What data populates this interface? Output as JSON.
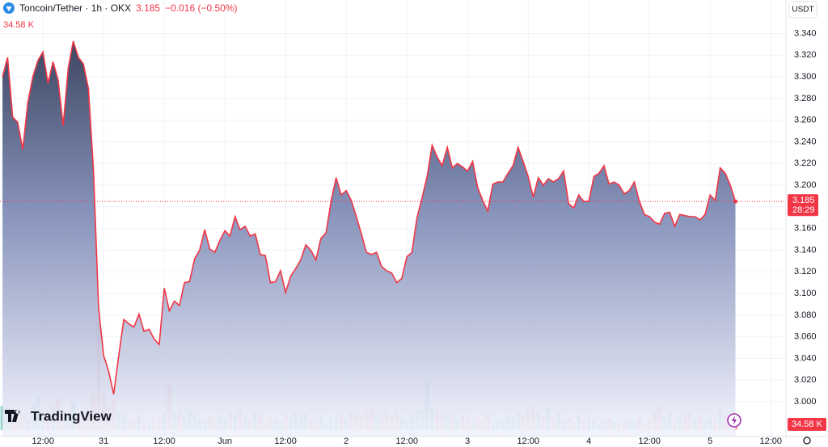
{
  "chart_data": {
    "type": "area",
    "title": "Toncoin/Tether · 1h · OKX",
    "last_price": 3.185,
    "change_label": "−0.016 (−0.50%)",
    "currency": "USDT",
    "countdown": "28:29",
    "watermark": "TradingView",
    "color": "#f23645",
    "grid": true,
    "x": [
      0,
      1,
      2,
      3,
      4,
      5,
      6,
      7,
      8,
      9,
      10,
      11,
      12,
      13,
      14,
      15,
      16,
      17,
      18,
      19,
      20,
      21,
      22,
      23,
      24,
      25,
      26,
      27,
      28,
      29,
      30,
      31,
      32,
      33,
      34,
      35,
      36,
      37,
      38,
      39,
      40,
      41,
      42,
      43,
      44,
      45,
      46,
      47,
      48,
      49,
      50,
      51,
      52,
      53,
      54,
      55,
      56,
      57,
      58,
      59,
      60,
      61,
      62,
      63,
      64,
      65,
      66,
      67,
      68,
      69,
      70,
      71,
      72,
      73,
      74,
      75,
      76,
      77,
      78,
      79,
      80,
      81,
      82,
      83,
      84,
      85,
      86,
      87,
      88,
      89,
      90,
      91,
      92,
      93,
      94,
      95,
      96,
      97,
      98,
      99,
      100,
      101,
      102,
      103,
      104,
      105,
      106,
      107,
      108,
      109,
      110,
      111,
      112,
      113,
      114,
      115,
      116,
      117,
      118,
      119,
      120,
      121,
      122,
      123,
      124,
      125,
      126,
      127,
      128,
      129,
      130,
      131,
      132,
      133,
      134,
      135,
      136,
      137,
      138,
      139,
      140,
      141,
      142,
      143,
      144,
      145
    ],
    "values": [
      3.3,
      3.318,
      3.263,
      3.258,
      3.233,
      3.276,
      3.3,
      3.315,
      3.323,
      3.294,
      3.314,
      3.297,
      3.255,
      3.308,
      3.333,
      3.318,
      3.312,
      3.289,
      3.214,
      3.087,
      3.043,
      3.028,
      3.007,
      3.043,
      3.076,
      3.072,
      3.069,
      3.081,
      3.065,
      3.067,
      3.058,
      3.053,
      3.105,
      3.084,
      3.093,
      3.089,
      3.11,
      3.111,
      3.132,
      3.14,
      3.159,
      3.141,
      3.138,
      3.149,
      3.158,
      3.153,
      3.171,
      3.159,
      3.162,
      3.153,
      3.155,
      3.136,
      3.135,
      3.11,
      3.111,
      3.121,
      3.101,
      3.116,
      3.123,
      3.131,
      3.145,
      3.14,
      3.131,
      3.151,
      3.156,
      3.185,
      3.207,
      3.191,
      3.195,
      3.186,
      3.171,
      3.155,
      3.138,
      3.136,
      3.138,
      3.125,
      3.121,
      3.119,
      3.11,
      3.114,
      3.134,
      3.138,
      3.17,
      3.188,
      3.208,
      3.237,
      3.226,
      3.218,
      3.235,
      3.216,
      3.22,
      3.217,
      3.213,
      3.222,
      3.198,
      3.186,
      3.176,
      3.201,
      3.203,
      3.203,
      3.211,
      3.218,
      3.235,
      3.222,
      3.208,
      3.189,
      3.207,
      3.2,
      3.206,
      3.203,
      3.206,
      3.213,
      3.183,
      3.179,
      3.191,
      3.185,
      3.185,
      3.208,
      3.211,
      3.218,
      3.201,
      3.203,
      3.2,
      3.192,
      3.195,
      3.203,
      3.185,
      3.173,
      3.171,
      3.166,
      3.164,
      3.174,
      3.175,
      3.162,
      3.173,
      3.172,
      3.171,
      3.171,
      3.168,
      3.173,
      3.191,
      3.186,
      3.216,
      3.211,
      3.2,
      3.185
    ],
    "volume": {
      "values": [
        210,
        196,
        140,
        84,
        126,
        98,
        224,
        280,
        126,
        175,
        210,
        266,
        98,
        126,
        245,
        140,
        112,
        154,
        320,
        940,
        320,
        200,
        260,
        150,
        110,
        90,
        70,
        120,
        80,
        60,
        90,
        110,
        150,
        390,
        140,
        160,
        120,
        170,
        140,
        100,
        80,
        110,
        90,
        120,
        100,
        160,
        130,
        170,
        120,
        90,
        150,
        130,
        80,
        110,
        90,
        70,
        130,
        100,
        150,
        110,
        140,
        90,
        80,
        120,
        60,
        100,
        110,
        130,
        90,
        150,
        140,
        130,
        170,
        190,
        140,
        110,
        160,
        120,
        150,
        110,
        80,
        130,
        170,
        180,
        410,
        200,
        160,
        150,
        130,
        110,
        90,
        120,
        100,
        80,
        110,
        90,
        130,
        60,
        100,
        90,
        120,
        110,
        150,
        130,
        170,
        200,
        150,
        120,
        190,
        110,
        160,
        90,
        100,
        70,
        120,
        80,
        110,
        90,
        60,
        80,
        100,
        70,
        60,
        90,
        70,
        80,
        110,
        60,
        90,
        160,
        200,
        120,
        150,
        90,
        110,
        130,
        170,
        100,
        120,
        80,
        110,
        90,
        170,
        120,
        80,
        34.58
      ],
      "value_labels": [
        null,
        null,
        null,
        null,
        null,
        null,
        null,
        null,
        null,
        null,
        null,
        null,
        null,
        null,
        null,
        null,
        null,
        null,
        null,
        null,
        null,
        null,
        null,
        null,
        null,
        null,
        null,
        null,
        null,
        null,
        null,
        null,
        null,
        null,
        null,
        null,
        null,
        null,
        null,
        null,
        null,
        null,
        null,
        null,
        null,
        null,
        null,
        null,
        null,
        null,
        null,
        null,
        null,
        null,
        null,
        null,
        null,
        null,
        null,
        null,
        null,
        null,
        null,
        null,
        null,
        null,
        null,
        null,
        null,
        null,
        null,
        null,
        null,
        null,
        null,
        null,
        null,
        null,
        null,
        null,
        null,
        null,
        null,
        null,
        null,
        null,
        null,
        null,
        null,
        null,
        null,
        null,
        null,
        null,
        null,
        null,
        null,
        null,
        null,
        null,
        null,
        null,
        null,
        null,
        null,
        null,
        null,
        null,
        null,
        null,
        null,
        null,
        null,
        null,
        null,
        null,
        null,
        null,
        null,
        null,
        null,
        null,
        null,
        null,
        null,
        null,
        null,
        null,
        null,
        null,
        null,
        null,
        null,
        null,
        null,
        null,
        null,
        null,
        null,
        null,
        null,
        null,
        null,
        null,
        null,
        "34.58 K"
      ],
      "up_color": "#7fcfc4",
      "down_color": "#f4a3a8"
    },
    "xlim": [
      -0.5,
      155
    ],
    "xticks": [
      {
        "value": 8,
        "label": "12:00"
      },
      {
        "value": 20,
        "label": "31"
      },
      {
        "value": 32,
        "label": "12:00"
      },
      {
        "value": 44,
        "label": "Jun"
      },
      {
        "value": 56,
        "label": "12:00"
      },
      {
        "value": 68,
        "label": "2"
      },
      {
        "value": 80,
        "label": "12:00"
      },
      {
        "value": 92,
        "label": "3"
      },
      {
        "value": 104,
        "label": "12:00"
      },
      {
        "value": 116,
        "label": "4"
      },
      {
        "value": 128,
        "label": "12:00"
      },
      {
        "value": 140,
        "label": "5"
      },
      {
        "value": 152,
        "label": "12:00"
      }
    ],
    "ylim": [
      2.968,
      3.371
    ],
    "yticks": [
      {
        "value": 3.0,
        "label": "3.000"
      },
      {
        "value": 3.02,
        "label": "3.020"
      },
      {
        "value": 3.04,
        "label": "3.040"
      },
      {
        "value": 3.06,
        "label": "3.060"
      },
      {
        "value": 3.08,
        "label": "3.080"
      },
      {
        "value": 3.1,
        "label": "3.100"
      },
      {
        "value": 3.12,
        "label": "3.120"
      },
      {
        "value": 3.14,
        "label": "3.140"
      },
      {
        "value": 3.16,
        "label": "3.160"
      },
      {
        "value": 3.18,
        "label": "3.180"
      },
      {
        "value": 3.2,
        "label": "3.200"
      },
      {
        "value": 3.22,
        "label": "3.220"
      },
      {
        "value": 3.24,
        "label": "3.240"
      },
      {
        "value": 3.26,
        "label": "3.260"
      },
      {
        "value": 3.28,
        "label": "3.280"
      },
      {
        "value": 3.3,
        "label": "3.300"
      },
      {
        "value": 3.32,
        "label": "3.320"
      },
      {
        "value": 3.34,
        "label": "3.340"
      }
    ]
  }
}
